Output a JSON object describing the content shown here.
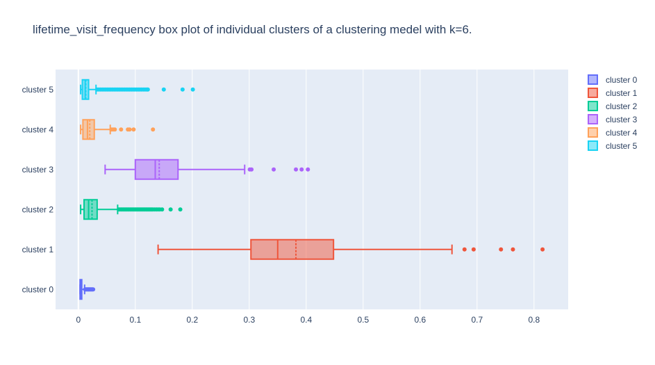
{
  "chart_data": {
    "type": "box",
    "orientation": "horizontal",
    "title": "lifetime_visit_frequency box plot of individual clusters of a clustering medel with k=6.",
    "xlabel": "",
    "ylabel": "",
    "xlim": [
      -0.04,
      0.86
    ],
    "xticks": [
      0,
      0.1,
      0.2,
      0.3,
      0.4,
      0.5,
      0.6,
      0.7,
      0.8
    ],
    "xtick_labels": [
      "0",
      "0.1",
      "0.2",
      "0.3",
      "0.4",
      "0.5",
      "0.6",
      "0.7",
      "0.8"
    ],
    "categories": [
      "cluster 0",
      "cluster 1",
      "cluster 2",
      "cluster 3",
      "cluster 4",
      "cluster 5"
    ],
    "grid": true,
    "legend_position": "top-right",
    "series": [
      {
        "name": "cluster 0",
        "color": "#636efa",
        "lowerfence": 0.003,
        "q1": 0.003,
        "median": 0.004,
        "mean": 0.005,
        "q3": 0.006,
        "upperfence": 0.011,
        "outliers": [
          0.012,
          0.013,
          0.014,
          0.015,
          0.016,
          0.017,
          0.018,
          0.019,
          0.02,
          0.021,
          0.022,
          0.023,
          0.024,
          0.025,
          0.026
        ]
      },
      {
        "name": "cluster 1",
        "color": "#ef553b",
        "lowerfence": 0.14,
        "q1": 0.303,
        "median": 0.35,
        "mean": 0.382,
        "q3": 0.448,
        "upperfence": 0.656,
        "outliers": [
          0.678,
          0.694,
          0.742,
          0.763,
          0.815
        ]
      },
      {
        "name": "cluster 2",
        "color": "#00cc96",
        "lowerfence": 0.004,
        "q1": 0.01,
        "median": 0.018,
        "mean": 0.024,
        "q3": 0.033,
        "upperfence": 0.069,
        "outliers": [
          0.071,
          0.073,
          0.075,
          0.077,
          0.079,
          0.081,
          0.083,
          0.085,
          0.087,
          0.089,
          0.091,
          0.093,
          0.095,
          0.097,
          0.099,
          0.101,
          0.103,
          0.105,
          0.107,
          0.109,
          0.111,
          0.113,
          0.115,
          0.117,
          0.119,
          0.121,
          0.123,
          0.125,
          0.127,
          0.129,
          0.131,
          0.134,
          0.137,
          0.14,
          0.143,
          0.147,
          0.162,
          0.179
        ]
      },
      {
        "name": "cluster 3",
        "color": "#ab63fa",
        "lowerfence": 0.047,
        "q1": 0.1,
        "median": 0.135,
        "mean": 0.142,
        "q3": 0.175,
        "upperfence": 0.292,
        "outliers": [
          0.301,
          0.304,
          0.343,
          0.382,
          0.392,
          0.403
        ]
      },
      {
        "name": "cluster 4",
        "color": "#ffa15a",
        "lowerfence": 0.004,
        "q1": 0.008,
        "median": 0.016,
        "mean": 0.02,
        "q3": 0.028,
        "upperfence": 0.056,
        "outliers": [
          0.058,
          0.061,
          0.064,
          0.075,
          0.087,
          0.09,
          0.097,
          0.131
        ]
      },
      {
        "name": "cluster 5",
        "color": "#19d3f3",
        "lowerfence": 0.004,
        "q1": 0.007,
        "median": 0.012,
        "mean": 0.013,
        "q3": 0.018,
        "upperfence": 0.031,
        "outliers": [
          0.033,
          0.036,
          0.039,
          0.042,
          0.045,
          0.048,
          0.051,
          0.054,
          0.057,
          0.06,
          0.063,
          0.066,
          0.069,
          0.072,
          0.075,
          0.078,
          0.081,
          0.084,
          0.087,
          0.09,
          0.093,
          0.096,
          0.099,
          0.102,
          0.105,
          0.108,
          0.111,
          0.114,
          0.117,
          0.12,
          0.122,
          0.15,
          0.183,
          0.201
        ]
      }
    ]
  }
}
